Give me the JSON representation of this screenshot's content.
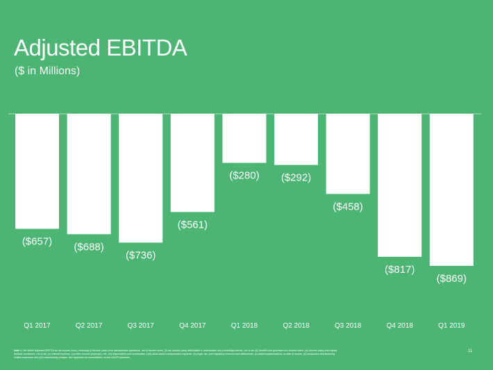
{
  "header": {
    "title": "Adjusted EBITDA",
    "subtitle": "($ in Millions)"
  },
  "chart_data": {
    "type": "bar",
    "title": "Adjusted EBITDA",
    "subtitle": "($ in Millions)",
    "xlabel": "",
    "ylabel": "",
    "categories": [
      "Q1 2017",
      "Q2 2017",
      "Q3 2017",
      "Q4 2017",
      "Q1 2018",
      "Q2 2018",
      "Q3 2018",
      "Q4 2018",
      "Q1 2019"
    ],
    "values": [
      -657,
      -688,
      -736,
      -561,
      -280,
      -292,
      -458,
      -817,
      -869
    ],
    "value_labels": [
      "($657)",
      "($688)",
      "($736)",
      "($561)",
      "($280)",
      "($292)",
      "($458)",
      "($817)",
      "($869)"
    ],
    "ylim": [
      -869,
      0
    ],
    "grid": false,
    "legend": "none",
    "colors": {
      "background": "#4cb574",
      "bar": "#ffffff",
      "text": "#ffffff",
      "baseline": "#d7eedd"
    }
  },
  "footer": {
    "note_label": "Note 1.",
    "note_text": "We define Adjusted EBITDA as net income (loss), excluding (i) income (loss) from discontinued operations, net of income taxes, (ii) net income (loss) attributable to redeemable non-controlling interest, net of tax (iii) benefit from (provision for) income taxes, (iv) income (loss) from equity method investment, net of tax, (v) interest expense, (vi) other income (expense), net, (vii) depreciation and amortization, (viii) stock-based compensation expense, (ix) legal, tax, and regulatory reserves and settlements, (x) asset impairment/loss on sale of assets, (xi) acquisition and financing related expenses, and (xii) restructuring charges. See appendix for reconciliation of non-GAAP measures.",
    "page_number": "11"
  }
}
